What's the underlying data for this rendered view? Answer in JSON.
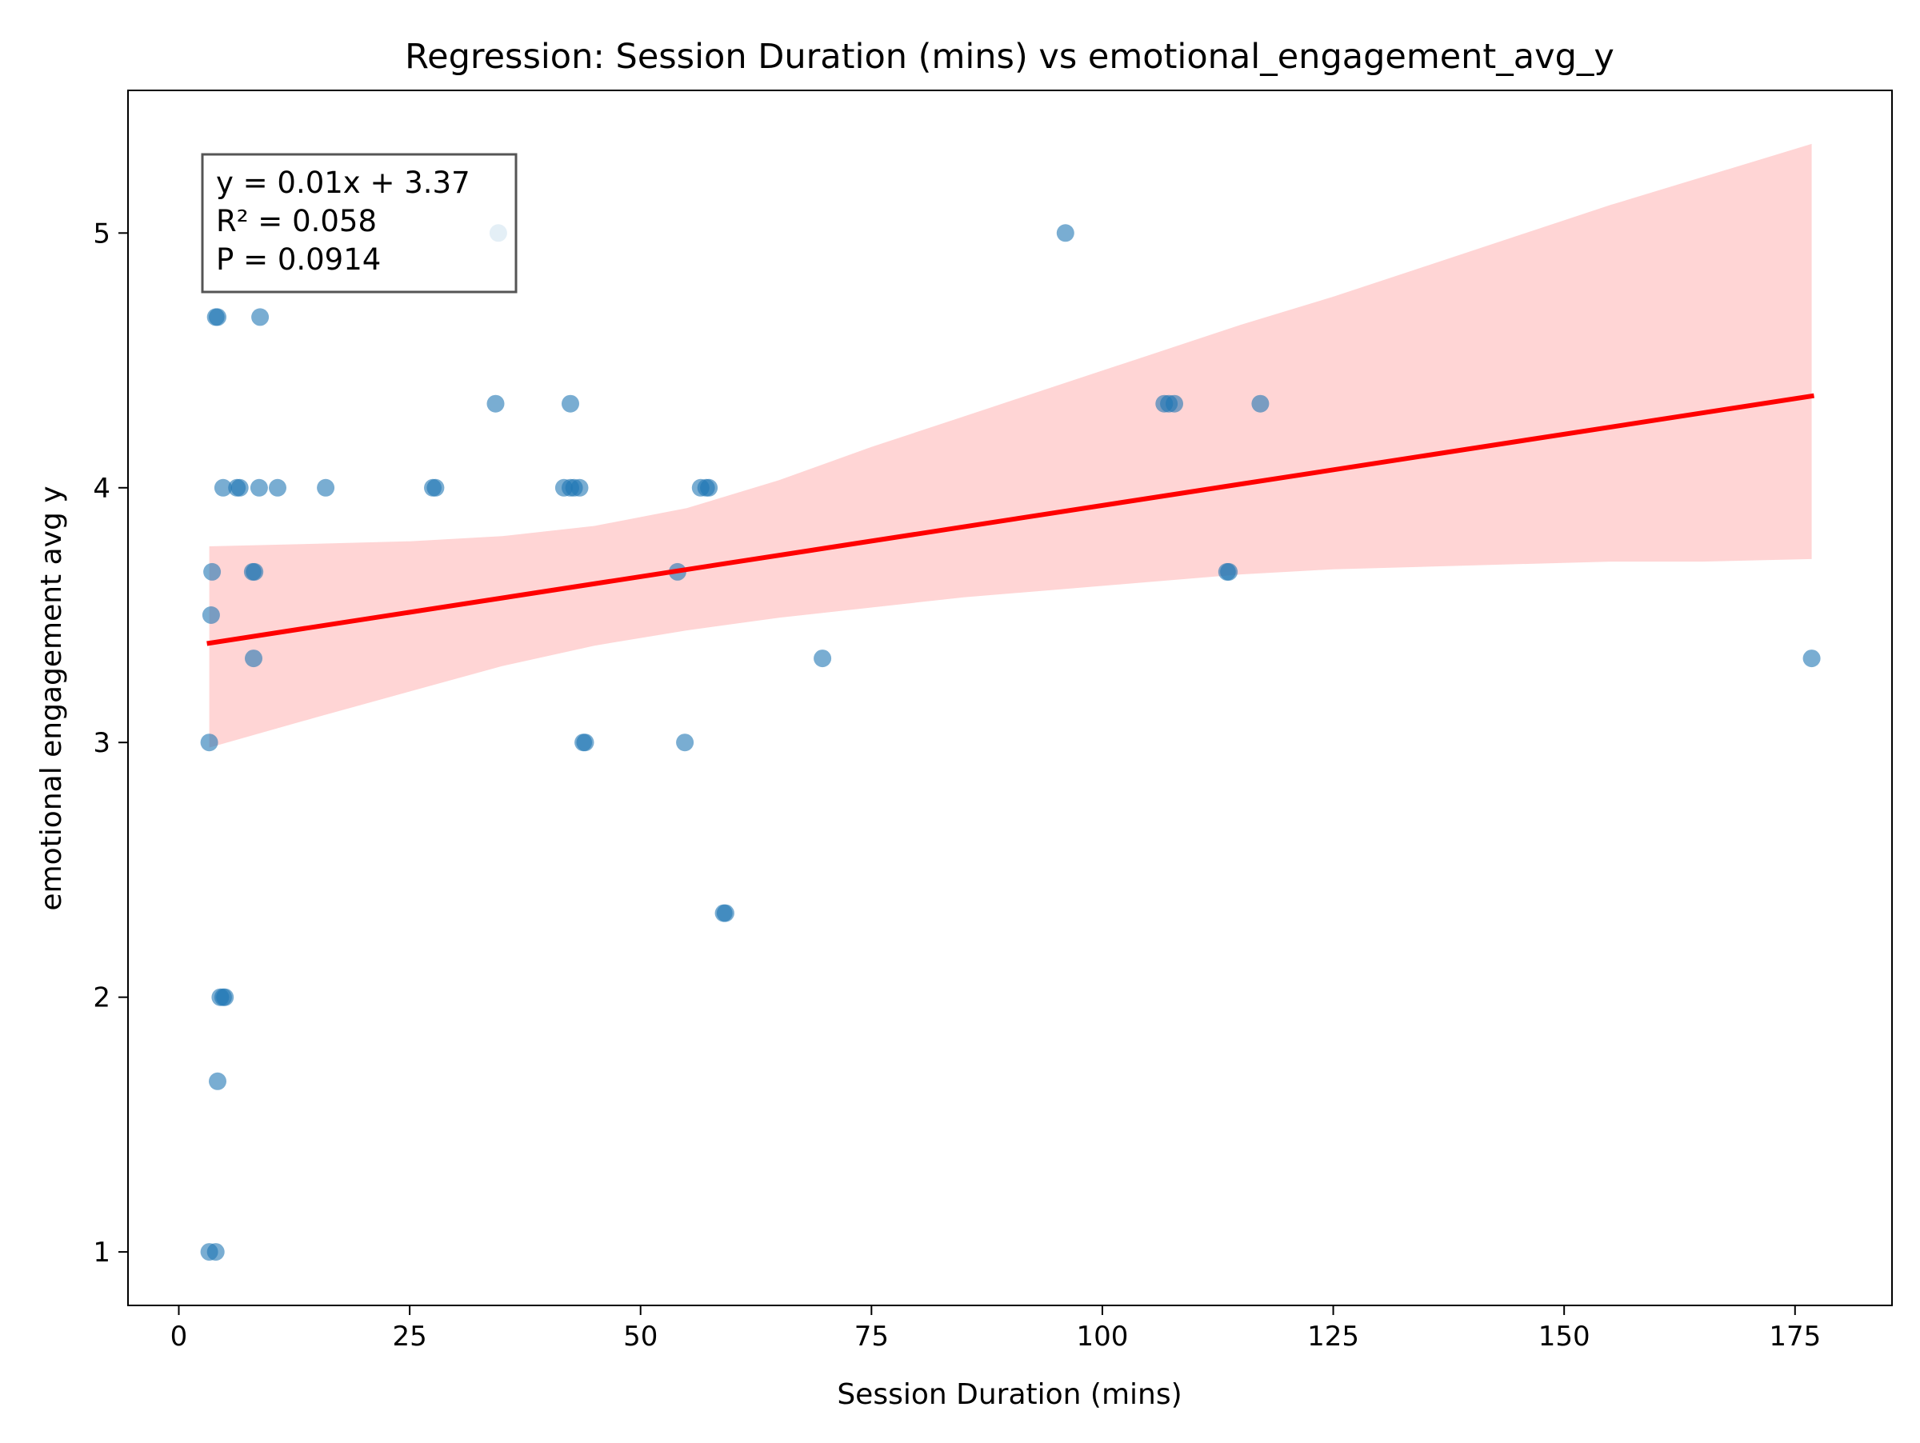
{
  "chart_data": {
    "type": "scatter",
    "title": "Regression: Session Duration (mins) vs emotional_engagement_avg_y",
    "xlabel": "Session Duration (mins)",
    "ylabel": "emotional engagement avg y",
    "xlim": [
      -5.5,
      185.5
    ],
    "ylim": [
      0.79,
      5.56
    ],
    "xticks": [
      0,
      25,
      50,
      75,
      100,
      125,
      150,
      175
    ],
    "xtick_labels": [
      "0",
      "25",
      "50",
      "75",
      "100",
      "125",
      "150",
      "175"
    ],
    "yticks": [
      1,
      2,
      3,
      4,
      5
    ],
    "ytick_labels": [
      "1",
      "2",
      "3",
      "4",
      "5"
    ],
    "grid": false,
    "colors": {
      "points": "#1f77b4",
      "line": "#ff0000",
      "band": "#ffb3b3"
    },
    "annotation": {
      "lines": [
        "y = 0.01x + 3.37",
        "R² = 0.058",
        "P = 0.0914"
      ],
      "placement": "top-left"
    },
    "series": [
      {
        "kind": "scatter",
        "points": [
          [
            3.3,
            1.0
          ],
          [
            4.0,
            1.0
          ],
          [
            4.2,
            1.67
          ],
          [
            4.5,
            2.0
          ],
          [
            4.8,
            2.0
          ],
          [
            5.0,
            2.0
          ],
          [
            3.3,
            3.0
          ],
          [
            3.5,
            3.5
          ],
          [
            3.6,
            3.67
          ],
          [
            4.0,
            4.67
          ],
          [
            4.2,
            4.67
          ],
          [
            8.8,
            4.67
          ],
          [
            4.8,
            4.0
          ],
          [
            6.3,
            4.0
          ],
          [
            6.6,
            4.0
          ],
          [
            8.7,
            4.0
          ],
          [
            10.7,
            4.0
          ],
          [
            15.9,
            4.0
          ],
          [
            8.0,
            3.67
          ],
          [
            8.2,
            3.67
          ],
          [
            8.1,
            3.33
          ],
          [
            27.5,
            4.0
          ],
          [
            27.8,
            4.0
          ],
          [
            34.3,
            4.33
          ],
          [
            34.6,
            5.0
          ],
          [
            41.7,
            4.0
          ],
          [
            42.4,
            4.0
          ],
          [
            42.8,
            4.0
          ],
          [
            43.4,
            4.0
          ],
          [
            42.4,
            4.33
          ],
          [
            43.8,
            3.0
          ],
          [
            44.0,
            3.0
          ],
          [
            54.0,
            3.67
          ],
          [
            54.8,
            3.0
          ],
          [
            56.5,
            4.0
          ],
          [
            57.1,
            4.0
          ],
          [
            57.4,
            4.0
          ],
          [
            59.0,
            2.33
          ],
          [
            59.2,
            2.33
          ],
          [
            69.7,
            3.33
          ],
          [
            96.0,
            5.0
          ],
          [
            106.7,
            4.33
          ],
          [
            107.2,
            4.33
          ],
          [
            107.8,
            4.33
          ],
          [
            113.5,
            3.67
          ],
          [
            113.7,
            3.67
          ],
          [
            117.1,
            4.33
          ],
          [
            176.8,
            3.33
          ]
        ]
      },
      {
        "kind": "line",
        "name": "",
        "x": [
          3.3,
          176.8
        ],
        "y": [
          3.39,
          4.36
        ]
      },
      {
        "kind": "band",
        "x": [
          3.3,
          15,
          25,
          35,
          45,
          55,
          65,
          75,
          85,
          95,
          105,
          115,
          125,
          135,
          145,
          155,
          165,
          176.8
        ],
        "lower": [
          2.98,
          3.1,
          3.2,
          3.3,
          3.38,
          3.44,
          3.49,
          3.53,
          3.57,
          3.6,
          3.63,
          3.66,
          3.68,
          3.69,
          3.7,
          3.71,
          3.71,
          3.72
        ],
        "upper": [
          3.77,
          3.78,
          3.79,
          3.81,
          3.85,
          3.92,
          4.03,
          4.16,
          4.28,
          4.4,
          4.52,
          4.64,
          4.75,
          4.87,
          4.99,
          5.11,
          5.22,
          5.35
        ]
      }
    ]
  }
}
